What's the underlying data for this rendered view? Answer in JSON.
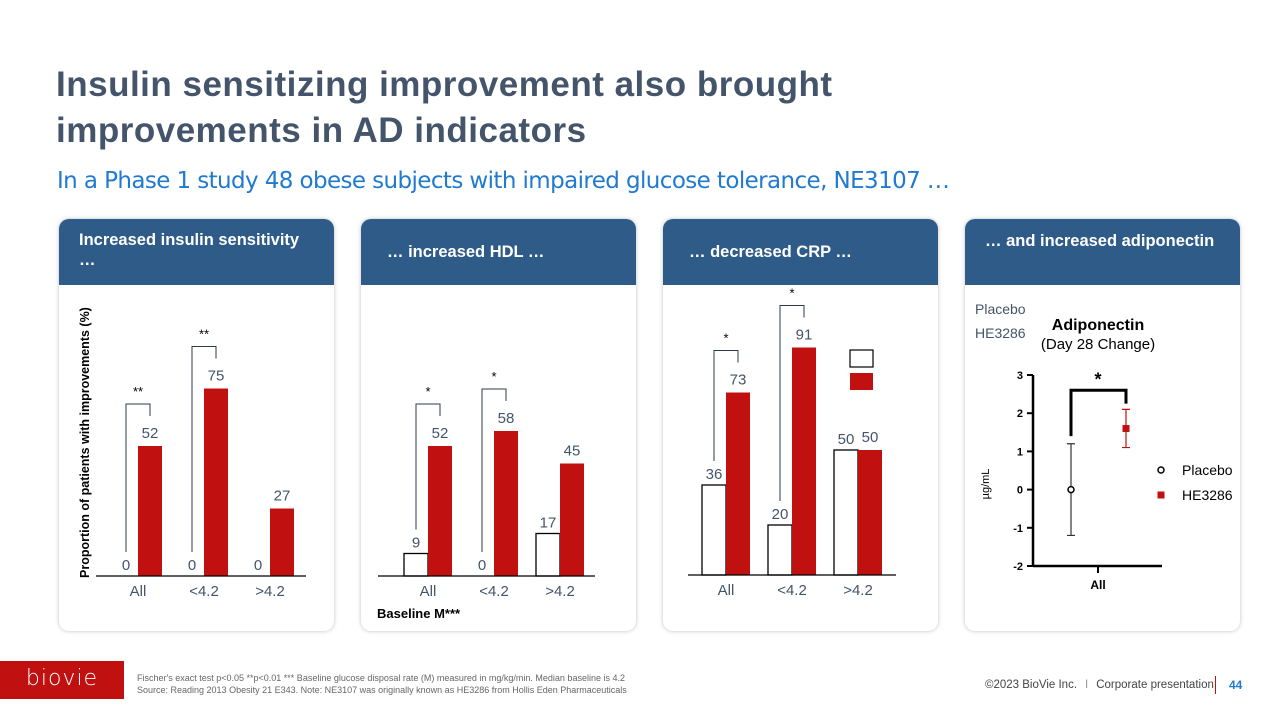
{
  "title": "Insulin sensitizing improvement also brought improvements in AD indicators",
  "subtitle": "In a Phase 1 study 48 obese subjects with impaired glucose tolerance, NE3107 …",
  "colors": {
    "header": "#2e5b88",
    "title": "#44546a",
    "subtitle": "#1f7ad0",
    "treatment": "#c01010",
    "placebo": "#ffffff"
  },
  "panels": [
    {
      "header": "Increased insulin sensitivity …"
    },
    {
      "header": "… increased HDL  …"
    },
    {
      "header": "… decreased CRP …"
    },
    {
      "header": "… and increased adiponectin"
    }
  ],
  "baseline_label": "Baseline M***",
  "chart_data": [
    {
      "type": "bar",
      "ylabel": "Proportion of patients with improvements (%)",
      "categories": [
        "All",
        "<4.2",
        ">4.2"
      ],
      "series": [
        {
          "values": [
            0,
            0,
            0
          ]
        },
        {
          "values": [
            52,
            75,
            27
          ]
        }
      ],
      "significance": [
        "**",
        "**",
        ""
      ]
    },
    {
      "type": "bar",
      "categories": [
        "All",
        "<4.2",
        ">4.2"
      ],
      "series": [
        {
          "values": [
            9,
            0,
            17
          ]
        },
        {
          "values": [
            52,
            58,
            45
          ]
        }
      ],
      "significance": [
        "*",
        "*",
        ""
      ]
    },
    {
      "type": "bar",
      "categories": [
        "All",
        "<4.2",
        ">4.2"
      ],
      "series": [
        {
          "values": [
            36,
            20,
            50
          ]
        },
        {
          "values": [
            73,
            91,
            50
          ]
        }
      ],
      "significance": [
        "*",
        "*",
        ""
      ],
      "legend": [
        "Placebo",
        "HE3286"
      ]
    },
    {
      "type": "scatter",
      "title": "Adiponectin",
      "subtitle": "(Day 28 Change)",
      "ylabel": "µg/mL",
      "ylim": [
        -2,
        3
      ],
      "yticks": [
        3,
        2,
        1,
        0,
        -1,
        -2
      ],
      "categories": [
        "All"
      ],
      "series": [
        {
          "name": "Placebo",
          "mean": 0,
          "lower": -1.2,
          "upper": 1.2
        },
        {
          "name": "HE3286",
          "mean": 1.6,
          "lower": 1.1,
          "upper": 2.1
        }
      ],
      "significance": "*"
    }
  ],
  "footer": {
    "logo": "biovie",
    "note1": "Fischer's exact test p<0.05   **p<0.01 *** Baseline glucose disposal rate (M) measured in mg/kg/min.  Median baseline is 4.2",
    "note2": "Source: Reading 2013 Obesity 21 E343. Note: NE3107 was originally known as HE3286 from Hollis Eden Pharmaceuticals",
    "copyright": "©2023 BioVie Inc.",
    "separator": "I",
    "presentation": "Corporate presentation",
    "page": "44"
  }
}
